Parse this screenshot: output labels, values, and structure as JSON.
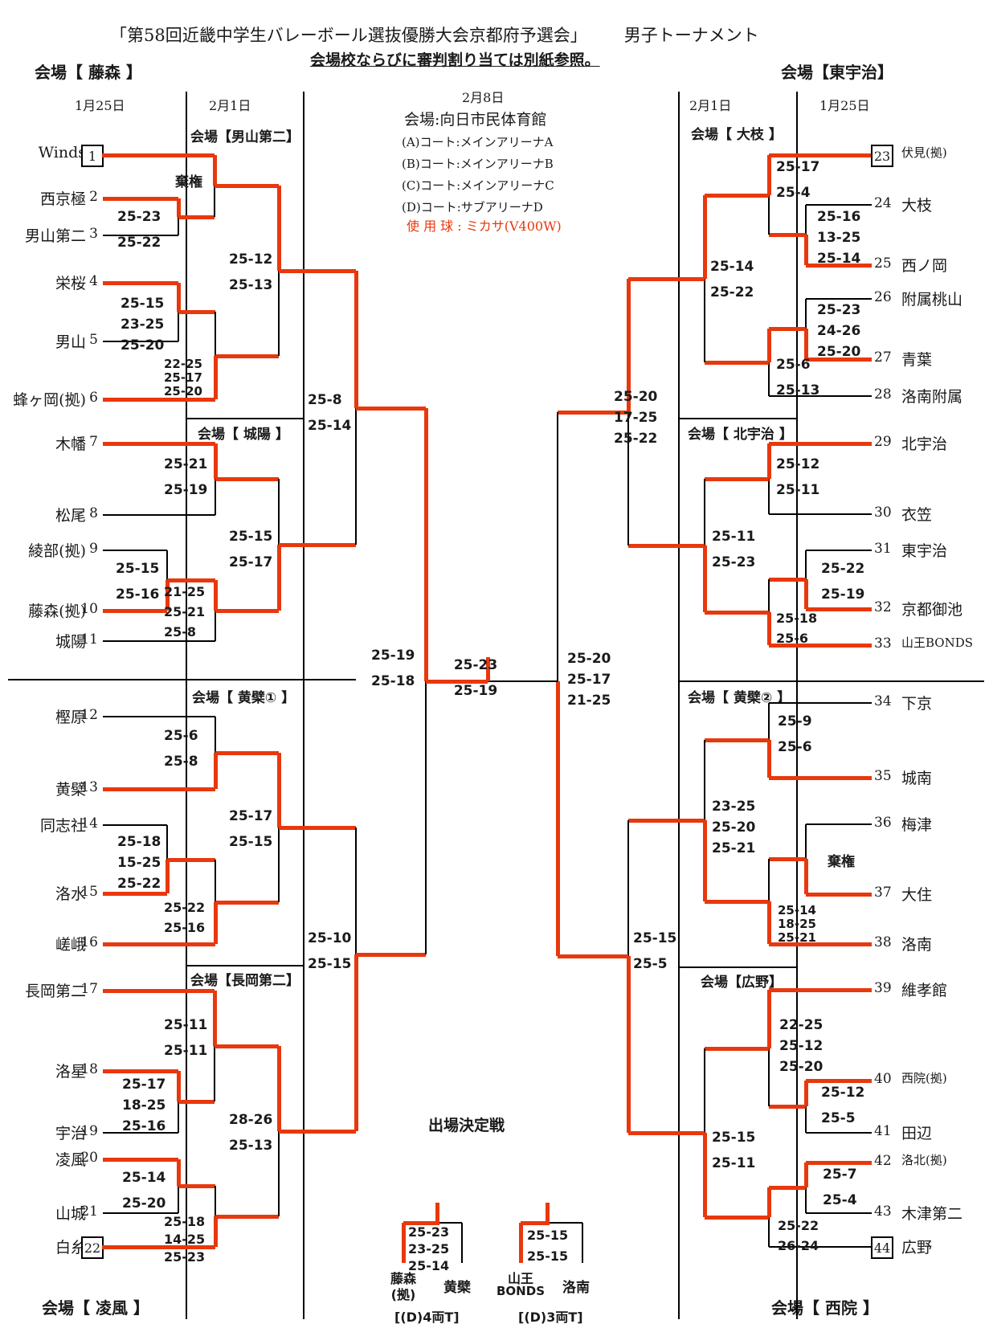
{
  "title": "「第58回近畿中学生バレーボール選抜優勝大会京都府予選会」",
  "title_right": "男子トーナメント",
  "subtitle": "会場校ならびに審判割り当ては別紙参照。",
  "colors": {
    "accent_red": "#e8380d",
    "line_black": "#000000"
  },
  "corner_venues": {
    "top_left": "会場【 藤森  】",
    "top_right": "会場【東宇治】",
    "bottom_left": "会場【  凌風  】",
    "bottom_right": "会場【  西院  】"
  },
  "date_labels": {
    "left_r1": "1月25日",
    "left_r2": "2月1日",
    "center": "2月8日",
    "right_r2": "2月1日",
    "right_r1": "1月25日"
  },
  "center_info": {
    "venue": "会場:向日市民体育館",
    "courts": [
      "(A)コート:メインアリーナA",
      "(B)コート:メインアリーナB",
      "(C)コート:メインアリーナC",
      "(D)コート:サブアリーナD"
    ],
    "ball": "使 用 球 : ミカサ(V400W)"
  },
  "venue_headers": {
    "v1": "会場【男山第二】",
    "v2": "会場【 城陽 】",
    "v3": "会場【 黄檗① 】",
    "v4": "会場【長岡第二】",
    "v5": "会場【 大枝 】",
    "v6": "会場【 北宇治 】",
    "v7": "会場【 黄檗② 】",
    "v8": "会場【広野】"
  },
  "teams": [
    {
      "num": "1",
      "name": "Winds"
    },
    {
      "num": "2",
      "name": "西京極"
    },
    {
      "num": "3",
      "name": "男山第二"
    },
    {
      "num": "4",
      "name": "栄桜"
    },
    {
      "num": "5",
      "name": "男山"
    },
    {
      "num": "6",
      "name": "蜂ヶ岡(拠)"
    },
    {
      "num": "7",
      "name": "木幡"
    },
    {
      "num": "8",
      "name": "松尾"
    },
    {
      "num": "9",
      "name": "綾部(拠)"
    },
    {
      "num": "10",
      "name": "藤森(拠)"
    },
    {
      "num": "11",
      "name": "城陽"
    },
    {
      "num": "12",
      "name": "樫原"
    },
    {
      "num": "13",
      "name": "黄檗"
    },
    {
      "num": "14",
      "name": "同志社"
    },
    {
      "num": "15",
      "name": "洛水"
    },
    {
      "num": "16",
      "name": "嵯峨"
    },
    {
      "num": "17",
      "name": "長岡第二"
    },
    {
      "num": "18",
      "name": "洛星"
    },
    {
      "num": "19",
      "name": "宇治"
    },
    {
      "num": "20",
      "name": "凌風"
    },
    {
      "num": "21",
      "name": "山城"
    },
    {
      "num": "22",
      "name": "白糸"
    },
    {
      "num": "23",
      "name": "伏見(拠)"
    },
    {
      "num": "24",
      "name": "大枝"
    },
    {
      "num": "25",
      "name": "西ノ岡"
    },
    {
      "num": "26",
      "name": "附属桃山"
    },
    {
      "num": "27",
      "name": "青葉"
    },
    {
      "num": "28",
      "name": "洛南附属"
    },
    {
      "num": "29",
      "name": "北宇治"
    },
    {
      "num": "30",
      "name": "衣笠"
    },
    {
      "num": "31",
      "name": "東宇治"
    },
    {
      "num": "32",
      "name": "京都御池"
    },
    {
      "num": "33",
      "name": "山王BONDS"
    },
    {
      "num": "34",
      "name": "下京"
    },
    {
      "num": "35",
      "name": "城南"
    },
    {
      "num": "36",
      "name": "梅津"
    },
    {
      "num": "37",
      "name": "大住"
    },
    {
      "num": "38",
      "name": "洛南"
    },
    {
      "num": "39",
      "name": "維孝館"
    },
    {
      "num": "40",
      "name": "西院(拠)"
    },
    {
      "num": "41",
      "name": "田辺"
    },
    {
      "num": "42",
      "name": "洛北(拠)"
    },
    {
      "num": "43",
      "name": "木津第二"
    },
    {
      "num": "44",
      "name": "広野"
    }
  ],
  "matches": {
    "m1": {
      "sets": [
        "25-23",
        "25-22"
      ],
      "winner": "西京極"
    },
    "m2": {
      "sets": [],
      "winner": "Winds",
      "note": "棄権"
    },
    "m3": {
      "sets": [
        "25-15",
        "23-25",
        "25-20"
      ],
      "winner": "栄桜"
    },
    "m4": {
      "sets": [
        "22-25",
        "25-17",
        "25-20"
      ],
      "winner": "蜂ヶ岡(拠)"
    },
    "m5": {
      "sets": [
        "25-12",
        "25-13"
      ],
      "winner": "Winds"
    },
    "m6": {
      "sets": [
        "25-21",
        "25-19"
      ],
      "winner": "木幡"
    },
    "m7": {
      "sets": [
        "25-15",
        "25-16"
      ],
      "winner": "藤森(拠)"
    },
    "m8": {
      "sets": [
        "21-25",
        "25-21",
        "25-8"
      ],
      "winner": "藤森(拠)"
    },
    "m9": {
      "sets": [
        "25-15",
        "25-17"
      ],
      "winner": "藤森(拠)"
    },
    "m10": {
      "sets": [
        "25-6",
        "25-8"
      ],
      "winner": "黄檗"
    },
    "m11": {
      "sets": [
        "25-18",
        "15-25",
        "25-22"
      ],
      "winner": "洛水"
    },
    "m12": {
      "sets": [
        "25-22",
        "25-16"
      ],
      "winner": "嵯峨"
    },
    "m13": {
      "sets": [
        "25-17",
        "25-15"
      ],
      "winner": "黄檗"
    },
    "m14": {
      "sets": [
        "25-17",
        "18-25",
        "25-16"
      ],
      "winner": "洛星"
    },
    "m15": {
      "sets": [
        "25-11",
        "25-11"
      ],
      "winner": "長岡第二"
    },
    "m16": {
      "sets": [
        "25-14",
        "25-20"
      ],
      "winner": "凌風"
    },
    "m17": {
      "sets": [
        "25-18",
        "14-25",
        "25-23"
      ],
      "winner": "白糸"
    },
    "m18": {
      "sets": [
        "28-26",
        "25-13"
      ],
      "winner": "長岡第二"
    },
    "qf1": {
      "sets": [
        "25-8",
        "25-14"
      ],
      "winner": "Winds"
    },
    "qf2": {
      "sets": [
        "25-10",
        "25-15"
      ],
      "winner": "長岡第二"
    },
    "sfl": {
      "sets": [
        "25-19",
        "25-18"
      ],
      "winner": "Winds"
    },
    "m19": {
      "sets": [
        "25-16",
        "13-25",
        "25-14"
      ],
      "winner": "西ノ岡"
    },
    "m20": {
      "sets": [
        "25-17",
        "25-4"
      ],
      "winner": "伏見(拠)"
    },
    "m21": {
      "sets": [
        "25-23",
        "24-26",
        "25-20"
      ],
      "winner": "青葉"
    },
    "m22": {
      "sets": [
        "25-6",
        "25-13"
      ],
      "winner": "青葉"
    },
    "m23": {
      "sets": [
        "25-14",
        "25-22"
      ],
      "winner": "伏見(拠)"
    },
    "m24": {
      "sets": [
        "25-12",
        "25-11"
      ],
      "winner": "北宇治"
    },
    "m25": {
      "sets": [
        "25-22",
        "25-19"
      ],
      "winner": "京都御池"
    },
    "m26": {
      "sets": [
        "25-18",
        "25-6"
      ],
      "winner": "山王BONDS"
    },
    "m27": {
      "sets": [
        "25-11",
        "25-23"
      ],
      "winner": "山王BONDS"
    },
    "m28": {
      "sets": [
        "25-9",
        "25-6"
      ],
      "winner": "城南"
    },
    "m29": {
      "sets": [],
      "winner": "大住",
      "note": "棄権"
    },
    "m30": {
      "sets": [
        "25-14",
        "18-25",
        "25-21"
      ],
      "winner": "洛南"
    },
    "m31": {
      "sets": [
        "23-25",
        "25-20",
        "25-21"
      ],
      "winner": "洛南"
    },
    "m32": {
      "sets": [
        "25-12",
        "25-5"
      ],
      "winner": "西院(拠)"
    },
    "m33": {
      "sets": [
        "22-25",
        "25-12",
        "25-20"
      ],
      "winner": "維孝館"
    },
    "m34": {
      "sets": [
        "25-7",
        "25-4"
      ],
      "winner": "洛北(拠)"
    },
    "m35": {
      "sets": [
        "25-22",
        "26-24"
      ],
      "winner": "洛北(拠)"
    },
    "m36": {
      "sets": [
        "25-15",
        "25-11"
      ],
      "winner": "洛北(拠)"
    },
    "qf3": {
      "sets": [
        "25-20",
        "17-25",
        "25-22"
      ],
      "winner": "伏見(拠)"
    },
    "qf4": {
      "sets": [
        "25-15",
        "25-5"
      ],
      "winner": "洛北(拠)"
    },
    "sfr": {
      "sets": [
        "25-20",
        "25-17",
        "21-25"
      ],
      "winner": "洛北(拠)"
    },
    "final": {
      "sets": [
        "25-23",
        "25-19"
      ],
      "winner": "Winds"
    }
  },
  "playoff": {
    "title": "出場決定戦",
    "left": {
      "team_a": "藤森",
      "team_a2": "(拠)",
      "team_b": "黄檗",
      "sets": [
        "25-23",
        "23-25",
        "25-14"
      ],
      "winner": "藤森(拠)",
      "court": "[(D)4両T]"
    },
    "right": {
      "team_a": "山王",
      "team_a2": "BONDS",
      "team_b": "洛南",
      "sets": [
        "25-15",
        "25-15"
      ],
      "winner": "山王BONDS",
      "court": "[(D)3両T]"
    }
  }
}
